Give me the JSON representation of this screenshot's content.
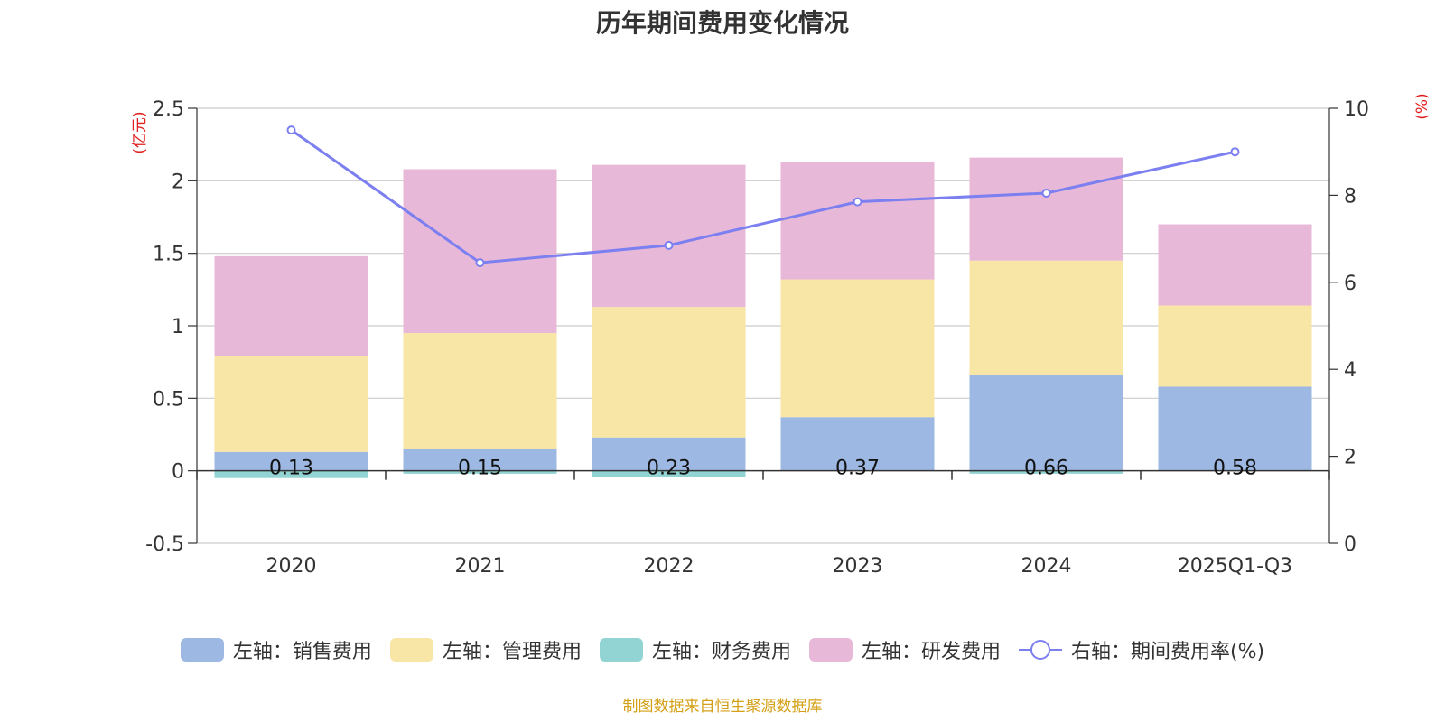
{
  "chart_data": {
    "type": "bar",
    "title": "历年期间费用变化情况",
    "categories": [
      "2020",
      "2021",
      "2022",
      "2023",
      "2024",
      "2025Q1-Q3"
    ],
    "left_axis": {
      "unit": "(亿元)",
      "ylim": [
        -0.5,
        2.5
      ],
      "ticks": [
        -0.5,
        0,
        0.5,
        1,
        1.5,
        2,
        2.5
      ]
    },
    "right_axis": {
      "unit": "(%)",
      "ylim": [
        0,
        10
      ],
      "ticks": [
        0,
        2,
        4,
        6,
        8,
        10
      ]
    },
    "series": [
      {
        "name": "左轴：销售费用",
        "kind": "bar",
        "color": "#9db8e2",
        "values": [
          0.13,
          0.15,
          0.23,
          0.37,
          0.66,
          0.58
        ],
        "labels": [
          "0.13",
          "0.15",
          "0.23",
          "0.37",
          "0.66",
          "0.58"
        ]
      },
      {
        "name": "左轴：管理费用",
        "kind": "bar",
        "color": "#f8e6a6",
        "values": [
          0.66,
          0.8,
          0.9,
          0.95,
          0.79,
          0.56
        ]
      },
      {
        "name": "左轴：财务费用",
        "kind": "bar",
        "color": "#92d3d4",
        "values": [
          -0.05,
          -0.02,
          -0.04,
          0.0,
          -0.02,
          0.0
        ]
      },
      {
        "name": "左轴：研发费用",
        "kind": "bar",
        "color": "#e8b8d9",
        "values": [
          0.69,
          1.13,
          0.98,
          0.81,
          0.71,
          0.56
        ]
      },
      {
        "name": "右轴：期间费用率(%)",
        "kind": "line",
        "color": "#7b7ff0",
        "values": [
          9.5,
          6.45,
          6.85,
          7.85,
          8.05,
          9.0
        ]
      }
    ]
  },
  "source_note": "制图数据来自恒生聚源数据库"
}
